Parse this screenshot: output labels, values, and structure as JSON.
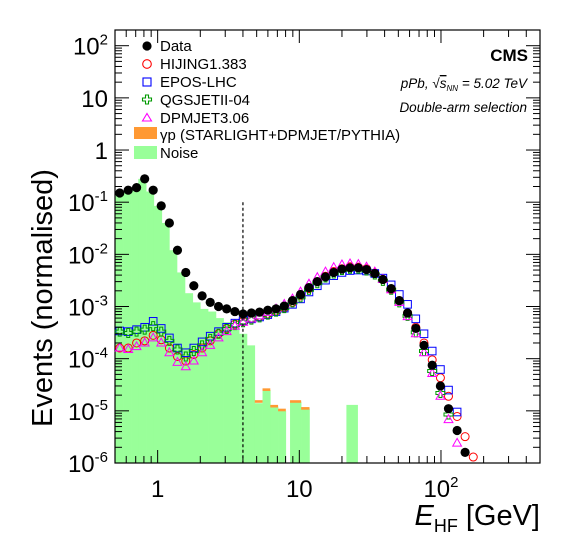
{
  "chart_data": {
    "type": "scatter",
    "title": "",
    "ylabel": "Events (normalised)",
    "xlabel_main": "E",
    "xlabel_sub": "HF",
    "xlabel_unit": "[GeV]",
    "xscale": "log",
    "yscale": "log",
    "xlim": [
      0.5,
      500
    ],
    "ylim": [
      1e-06,
      200
    ],
    "x_ticks": [
      {
        "v": 1,
        "label": "1"
      },
      {
        "v": 10,
        "label": "10"
      },
      {
        "v": 100,
        "label": "10",
        "sup": "2"
      }
    ],
    "y_ticks": [
      {
        "v": 1e-06,
        "base": "10",
        "sup": "-6"
      },
      {
        "v": 1e-05,
        "base": "10",
        "sup": "-5"
      },
      {
        "v": 0.0001,
        "base": "10",
        "sup": "-4"
      },
      {
        "v": 0.001,
        "base": "10",
        "sup": "-3"
      },
      {
        "v": 0.01,
        "base": "10",
        "sup": "-2"
      },
      {
        "v": 0.1,
        "base": "10",
        "sup": "-1"
      },
      {
        "v": 1,
        "base": "1",
        "sup": ""
      },
      {
        "v": 10,
        "base": "10",
        "sup": ""
      },
      {
        "v": 100,
        "base": "10",
        "sup": "2"
      }
    ],
    "annotations": {
      "experiment": "CMS",
      "collision_sys": "pPb, ",
      "sqrt_s": "s",
      "sqrt_sub": "NN",
      "energy": " = 5.02 TeV",
      "selection": "Double-arm selection"
    },
    "threshold_line_x": 4,
    "legend_position": "top-left",
    "noise": {
      "name": "Noise",
      "color": "#99ff99",
      "bins": [
        {
          "lo": 0.5,
          "hi": 0.57,
          "y": 0.15
        },
        {
          "lo": 0.57,
          "hi": 0.65,
          "y": 0.16
        },
        {
          "lo": 0.65,
          "hi": 0.73,
          "y": 0.19
        },
        {
          "lo": 0.73,
          "hi": 0.83,
          "y": 0.28
        },
        {
          "lo": 0.83,
          "hi": 0.94,
          "y": 0.16
        },
        {
          "lo": 0.94,
          "hi": 1.07,
          "y": 0.085
        },
        {
          "lo": 1.07,
          "hi": 1.21,
          "y": 0.04
        },
        {
          "lo": 1.21,
          "hi": 1.37,
          "y": 0.012
        },
        {
          "lo": 1.37,
          "hi": 1.56,
          "y": 0.0045
        },
        {
          "lo": 1.56,
          "hi": 1.77,
          "y": 0.0018
        },
        {
          "lo": 1.77,
          "hi": 2.0,
          "y": 0.0012
        },
        {
          "lo": 2.0,
          "hi": 2.27,
          "y": 0.0009
        },
        {
          "lo": 2.27,
          "hi": 2.58,
          "y": 0.0008
        },
        {
          "lo": 2.58,
          "hi": 2.92,
          "y": 0.0006
        },
        {
          "lo": 2.92,
          "hi": 3.32,
          "y": 0.0005
        },
        {
          "lo": 3.32,
          "hi": 3.76,
          "y": 0.0004
        },
        {
          "lo": 3.76,
          "hi": 4.27,
          "y": 0.0003
        },
        {
          "lo": 4.27,
          "hi": 4.85,
          "y": 0.00018
        },
        {
          "lo": 4.85,
          "hi": 5.5,
          "y": 1.4e-05
        },
        {
          "lo": 5.5,
          "hi": 6.24,
          "y": 2.5e-05
        },
        {
          "lo": 6.24,
          "hi": 7.08,
          "y": 1.2e-05
        },
        {
          "lo": 7.08,
          "hi": 8.03,
          "y": 1e-05
        },
        {
          "lo": 8.6,
          "hi": 10.3,
          "y": 1.5e-05
        },
        {
          "lo": 10.3,
          "hi": 11.8,
          "y": 1.1e-05
        },
        {
          "lo": 21.5,
          "hi": 25.8,
          "y": 1.3e-05
        }
      ]
    },
    "photoproduction": {
      "name": "γp (STARLIGHT+DPMJET/PYTHIA)",
      "color": "#ff9933",
      "bins": [
        {
          "lo": 4.85,
          "hi": 5.5,
          "y": 1.6e-05
        },
        {
          "lo": 5.5,
          "hi": 6.24,
          "y": 2.7e-05
        },
        {
          "lo": 6.24,
          "hi": 7.08,
          "y": 1.3e-05
        },
        {
          "lo": 7.08,
          "hi": 8.03,
          "y": 1.1e-05
        },
        {
          "lo": 8.6,
          "hi": 10.3,
          "y": 1.6e-05
        },
        {
          "lo": 10.3,
          "hi": 11.8,
          "y": 1.18e-05
        }
      ]
    },
    "series": [
      {
        "name": "Data",
        "marker": "dot",
        "color": "#000000",
        "points": [
          [
            0.54,
            0.15
          ],
          [
            0.62,
            0.17
          ],
          [
            0.71,
            0.19
          ],
          [
            0.81,
            0.28
          ],
          [
            0.93,
            0.17
          ],
          [
            1.06,
            0.085
          ],
          [
            1.21,
            0.04
          ],
          [
            1.38,
            0.012
          ],
          [
            1.58,
            0.0045
          ],
          [
            1.8,
            0.0025
          ],
          [
            2.06,
            0.0016
          ],
          [
            2.35,
            0.0012
          ],
          [
            2.69,
            0.001
          ],
          [
            3.07,
            0.0009
          ],
          [
            3.51,
            0.0008
          ],
          [
            4.01,
            0.00072
          ],
          [
            4.59,
            0.00075
          ],
          [
            5.24,
            0.00078
          ],
          [
            5.99,
            0.00085
          ],
          [
            6.85,
            0.0009
          ],
          [
            7.83,
            0.00102
          ],
          [
            8.95,
            0.0013
          ],
          [
            10.2,
            0.0017
          ],
          [
            11.7,
            0.0023
          ],
          [
            13.4,
            0.003
          ],
          [
            15.3,
            0.0037
          ],
          [
            17.5,
            0.0045
          ],
          [
            20.0,
            0.0052
          ],
          [
            22.8,
            0.0055
          ],
          [
            26.1,
            0.0055
          ],
          [
            29.8,
            0.0051
          ],
          [
            34.1,
            0.0043
          ],
          [
            38.9,
            0.0033
          ],
          [
            44.5,
            0.0022
          ],
          [
            50.8,
            0.0013
          ],
          [
            58.1,
            0.00075
          ],
          [
            66.4,
            0.00038
          ],
          [
            75.9,
            0.00018
          ],
          [
            86.7,
            7.5e-05
          ],
          [
            99.1,
            3e-05
          ],
          [
            113,
            1.1e-05
          ],
          [
            130,
            4.2e-06
          ],
          [
            148,
            1.6e-06
          ]
        ]
      },
      {
        "name": "HIJING1.383",
        "marker": "circle",
        "color": "#ff0000",
        "points": [
          [
            0.54,
            0.00016
          ],
          [
            0.62,
            0.00016
          ],
          [
            0.71,
            0.0002
          ],
          [
            0.81,
            0.00022
          ],
          [
            0.93,
            0.00028
          ],
          [
            1.06,
            0.00023
          ],
          [
            1.21,
            0.00016
          ],
          [
            1.38,
            0.00011
          ],
          [
            1.58,
            9e-05
          ],
          [
            1.8,
            0.00012
          ],
          [
            2.06,
            0.00016
          ],
          [
            2.35,
            0.00022
          ],
          [
            2.69,
            0.0003
          ],
          [
            3.07,
            0.00038
          ],
          [
            3.51,
            0.00046
          ],
          [
            4.01,
            0.00052
          ],
          [
            4.59,
            0.00058
          ],
          [
            5.24,
            0.00064
          ],
          [
            5.99,
            0.00072
          ],
          [
            6.85,
            0.00082
          ],
          [
            7.83,
            0.00095
          ],
          [
            8.95,
            0.0012
          ],
          [
            10.2,
            0.0016
          ],
          [
            11.7,
            0.0022
          ],
          [
            13.4,
            0.003
          ],
          [
            15.3,
            0.0038
          ],
          [
            17.5,
            0.0047
          ],
          [
            20.0,
            0.0053
          ],
          [
            22.8,
            0.0058
          ],
          [
            26.1,
            0.0057
          ],
          [
            29.8,
            0.0053
          ],
          [
            34.1,
            0.0044
          ],
          [
            38.9,
            0.0033
          ],
          [
            44.5,
            0.0021
          ],
          [
            50.8,
            0.0013
          ],
          [
            58.1,
            0.00075
          ],
          [
            66.4,
            0.0004
          ],
          [
            75.9,
            0.0002
          ],
          [
            86.7,
            9.5e-05
          ],
          [
            99.1,
            4.3e-05
          ],
          [
            113,
            1.9e-05
          ],
          [
            130,
            7.8e-06
          ],
          [
            148,
            3.2e-06
          ],
          [
            169,
            1.3e-06
          ]
        ]
      },
      {
        "name": "EPOS-LHC",
        "marker": "square",
        "color": "#0000ff",
        "points": [
          [
            0.54,
            0.00034
          ],
          [
            0.62,
            0.00033
          ],
          [
            0.71,
            0.00036
          ],
          [
            0.81,
            0.0004
          ],
          [
            0.93,
            0.00052
          ],
          [
            1.06,
            0.00038
          ],
          [
            1.21,
            0.00025
          ],
          [
            1.38,
            0.00016
          ],
          [
            1.58,
            0.00013
          ],
          [
            1.8,
            0.00016
          ],
          [
            2.06,
            0.00021
          ],
          [
            2.35,
            0.00027
          ],
          [
            2.69,
            0.00033
          ],
          [
            3.07,
            0.0004
          ],
          [
            3.51,
            0.00048
          ],
          [
            4.01,
            0.00053
          ],
          [
            4.59,
            0.00058
          ],
          [
            5.24,
            0.00063
          ],
          [
            5.99,
            0.0007
          ],
          [
            6.85,
            0.0008
          ],
          [
            7.83,
            0.00093
          ],
          [
            8.95,
            0.0011
          ],
          [
            10.2,
            0.0014
          ],
          [
            11.7,
            0.0019
          ],
          [
            13.4,
            0.0025
          ],
          [
            15.3,
            0.0032
          ],
          [
            17.5,
            0.0039
          ],
          [
            20.0,
            0.0045
          ],
          [
            22.8,
            0.0049
          ],
          [
            26.1,
            0.005
          ],
          [
            29.8,
            0.0048
          ],
          [
            34.1,
            0.0043
          ],
          [
            38.9,
            0.0035
          ],
          [
            44.5,
            0.0026
          ],
          [
            50.8,
            0.0017
          ],
          [
            58.1,
            0.0011
          ],
          [
            66.4,
            0.00058
          ],
          [
            75.9,
            0.0003
          ],
          [
            86.7,
            0.00014
          ],
          [
            99.1,
            6.2e-05
          ],
          [
            113,
            2.5e-05
          ],
          [
            130,
            9.5e-06
          ]
        ]
      },
      {
        "name": "QGSJETII-04",
        "marker": "cross",
        "color": "#009900",
        "points": [
          [
            0.54,
            0.00033
          ],
          [
            0.62,
            0.00031
          ],
          [
            0.71,
            0.00033
          ],
          [
            0.81,
            0.00036
          ],
          [
            0.93,
            0.00042
          ],
          [
            1.06,
            0.00033
          ],
          [
            1.21,
            0.00022
          ],
          [
            1.38,
            0.00015
          ],
          [
            1.58,
            0.00011
          ],
          [
            1.8,
            0.00014
          ],
          [
            2.06,
            0.00018
          ],
          [
            2.35,
            0.00024
          ],
          [
            2.69,
            0.0003
          ],
          [
            3.07,
            0.00037
          ],
          [
            3.51,
            0.00044
          ],
          [
            4.01,
            0.0005
          ],
          [
            4.59,
            0.00056
          ],
          [
            5.24,
            0.00062
          ],
          [
            5.99,
            0.0007
          ],
          [
            6.85,
            0.0008
          ],
          [
            7.83,
            0.00093
          ],
          [
            8.95,
            0.0012
          ],
          [
            10.2,
            0.0015
          ],
          [
            11.7,
            0.0021
          ],
          [
            13.4,
            0.0028
          ],
          [
            15.3,
            0.0036
          ],
          [
            17.5,
            0.0043
          ],
          [
            20.0,
            0.005
          ],
          [
            22.8,
            0.0053
          ],
          [
            26.1,
            0.0053
          ],
          [
            29.8,
            0.0049
          ],
          [
            34.1,
            0.0041
          ],
          [
            38.9,
            0.0031
          ],
          [
            44.5,
            0.0021
          ],
          [
            50.8,
            0.0012
          ],
          [
            58.1,
            0.00066
          ],
          [
            66.4,
            0.00032
          ],
          [
            75.9,
            0.00014
          ],
          [
            86.7,
            5.8e-05
          ],
          [
            99.1,
            2.2e-05
          ],
          [
            113,
            8.5e-06
          ]
        ]
      },
      {
        "name": "DPMJET3.06",
        "marker": "triangle",
        "color": "#ff00ff",
        "points": [
          [
            0.54,
            0.00016
          ],
          [
            0.62,
            0.00015
          ],
          [
            0.71,
            0.00017
          ],
          [
            0.81,
            0.0002
          ],
          [
            0.93,
            0.00025
          ],
          [
            1.06,
            0.0002
          ],
          [
            1.21,
            0.00013
          ],
          [
            1.38,
            8.5e-05
          ],
          [
            1.58,
            7e-05
          ],
          [
            1.8,
            9e-05
          ],
          [
            2.06,
            0.00013
          ],
          [
            2.35,
            0.00018
          ],
          [
            2.69,
            0.00025
          ],
          [
            3.07,
            0.00033
          ],
          [
            3.51,
            0.00042
          ],
          [
            4.01,
            0.0005
          ],
          [
            4.59,
            0.00058
          ],
          [
            5.24,
            0.00066
          ],
          [
            5.99,
            0.00077
          ],
          [
            6.85,
            0.0009
          ],
          [
            7.83,
            0.0011
          ],
          [
            8.95,
            0.0014
          ],
          [
            10.2,
            0.0019
          ],
          [
            11.7,
            0.0027
          ],
          [
            13.4,
            0.0036
          ],
          [
            15.3,
            0.0046
          ],
          [
            17.5,
            0.0056
          ],
          [
            20.0,
            0.0063
          ],
          [
            22.8,
            0.0066
          ],
          [
            26.1,
            0.0064
          ],
          [
            29.8,
            0.0057
          ],
          [
            34.1,
            0.0046
          ],
          [
            38.9,
            0.0033
          ],
          [
            44.5,
            0.0021
          ],
          [
            50.8,
            0.0012
          ],
          [
            58.1,
            0.00064
          ],
          [
            66.4,
            0.0003
          ],
          [
            75.9,
            0.00013
          ],
          [
            86.7,
            5.2e-05
          ],
          [
            99.1,
            1.9e-05
          ],
          [
            113,
            6.8e-06
          ],
          [
            130,
            2.4e-06
          ]
        ]
      }
    ]
  }
}
